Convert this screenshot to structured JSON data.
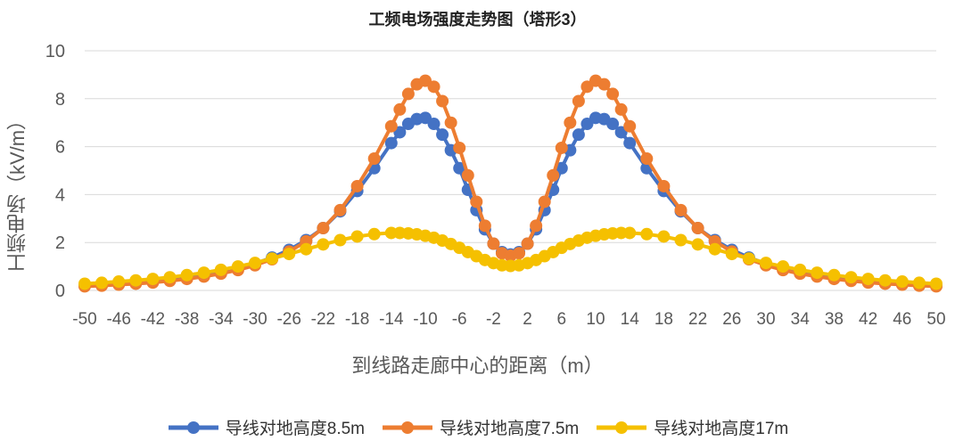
{
  "chart_data": {
    "type": "line",
    "title": "工频电场强度走势图（塔形3）",
    "xlabel": "到线路走廊中心的距离（m）",
    "ylabel": "工频电场（kV/m）",
    "ylim": [
      0,
      10
    ],
    "yticks": [
      "0",
      "2",
      "4",
      "6",
      "8",
      "10"
    ],
    "xlim": [
      -50,
      50
    ],
    "xticks": [
      "-50",
      "-46",
      "-42",
      "-38",
      "-34",
      "-30",
      "-26",
      "-22",
      "-18",
      "-14",
      "-10",
      "-6",
      "-2",
      "2",
      "6",
      "10",
      "14",
      "18",
      "22",
      "26",
      "30",
      "34",
      "38",
      "42",
      "46",
      "50"
    ],
    "grid": "horizontal",
    "legend": "bottom",
    "x": [
      -50,
      -48,
      -46,
      -44,
      -42,
      -40,
      -38,
      -36,
      -34,
      -32,
      -30,
      -28,
      -26,
      -24,
      -22,
      -20,
      -18,
      -16,
      -14,
      -13,
      -12,
      -11,
      -10,
      -9,
      -8,
      -7,
      -6,
      -5,
      -4,
      -3,
      -2,
      -1,
      0,
      1,
      2,
      3,
      4,
      5,
      6,
      7,
      8,
      9,
      10,
      11,
      12,
      13,
      14,
      16,
      18,
      20,
      22,
      24,
      26,
      28,
      30,
      32,
      34,
      36,
      38,
      40,
      42,
      44,
      46,
      48,
      50
    ],
    "series": [
      {
        "name": "导线对地高度8.5m",
        "color": "#4472C4",
        "values": [
          0.2,
          0.23,
          0.27,
          0.32,
          0.38,
          0.45,
          0.53,
          0.63,
          0.76,
          0.92,
          1.12,
          1.37,
          1.69,
          2.1,
          2.6,
          3.3,
          4.15,
          5.1,
          6.15,
          6.6,
          6.95,
          7.15,
          7.2,
          6.95,
          6.5,
          5.85,
          5.1,
          4.2,
          3.35,
          2.55,
          1.95,
          1.6,
          1.5,
          1.6,
          1.95,
          2.55,
          3.35,
          4.2,
          5.1,
          5.85,
          6.5,
          6.95,
          7.2,
          7.15,
          6.95,
          6.6,
          6.15,
          5.1,
          4.15,
          3.3,
          2.6,
          2.1,
          1.69,
          1.37,
          1.12,
          0.92,
          0.76,
          0.63,
          0.53,
          0.45,
          0.38,
          0.32,
          0.27,
          0.23,
          0.2
        ]
      },
      {
        "name": "导线对地高度7.5m",
        "color": "#ED7D31",
        "values": [
          0.17,
          0.2,
          0.24,
          0.28,
          0.33,
          0.4,
          0.48,
          0.58,
          0.7,
          0.85,
          1.05,
          1.3,
          1.62,
          2.05,
          2.6,
          3.35,
          4.35,
          5.5,
          6.85,
          7.55,
          8.2,
          8.6,
          8.75,
          8.5,
          7.9,
          7.0,
          5.95,
          4.8,
          3.7,
          2.7,
          1.95,
          1.55,
          1.45,
          1.55,
          1.95,
          2.7,
          3.7,
          4.8,
          5.95,
          7.0,
          7.9,
          8.5,
          8.75,
          8.6,
          8.2,
          7.55,
          6.85,
          5.5,
          4.35,
          3.35,
          2.6,
          2.05,
          1.62,
          1.3,
          1.05,
          0.85,
          0.7,
          0.58,
          0.48,
          0.4,
          0.33,
          0.28,
          0.24,
          0.2,
          0.17
        ]
      },
      {
        "name": "导线对地高度17m",
        "color": "#F5C000",
        "values": [
          0.28,
          0.32,
          0.37,
          0.42,
          0.48,
          0.55,
          0.64,
          0.74,
          0.86,
          1.0,
          1.15,
          1.33,
          1.52,
          1.72,
          1.92,
          2.1,
          2.25,
          2.35,
          2.4,
          2.4,
          2.38,
          2.34,
          2.28,
          2.2,
          2.08,
          1.94,
          1.78,
          1.6,
          1.43,
          1.27,
          1.14,
          1.05,
          1.02,
          1.05,
          1.14,
          1.27,
          1.43,
          1.6,
          1.78,
          1.94,
          2.08,
          2.2,
          2.28,
          2.34,
          2.38,
          2.4,
          2.4,
          2.35,
          2.25,
          2.1,
          1.92,
          1.72,
          1.52,
          1.33,
          1.15,
          1.0,
          0.86,
          0.74,
          0.64,
          0.55,
          0.48,
          0.42,
          0.37,
          0.32,
          0.28
        ]
      }
    ]
  }
}
